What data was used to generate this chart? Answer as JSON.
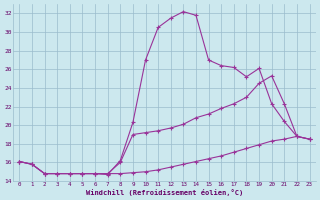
{
  "xlabel": "Windchill (Refroidissement éolien,°C)",
  "background_color": "#cce8ee",
  "line_color": "#993399",
  "xlim": [
    -0.5,
    23.5
  ],
  "ylim": [
    14,
    33
  ],
  "xticks": [
    0,
    1,
    2,
    3,
    4,
    5,
    6,
    7,
    8,
    9,
    10,
    11,
    12,
    13,
    14,
    15,
    16,
    17,
    18,
    19,
    20,
    21,
    22,
    23
  ],
  "yticks": [
    14,
    16,
    18,
    20,
    22,
    24,
    26,
    28,
    30,
    32
  ],
  "series1_y": [
    16.1,
    15.8,
    14.8,
    14.8,
    14.8,
    14.8,
    14.8,
    14.7,
    16.2,
    20.3,
    27.0,
    30.5,
    31.5,
    32.2,
    31.8,
    27.0,
    26.4,
    26.2,
    25.2,
    26.1,
    22.3,
    20.4,
    18.8,
    18.5
  ],
  "series2_y": [
    16.1,
    15.8,
    14.8,
    14.8,
    14.8,
    14.8,
    14.8,
    14.8,
    16.0,
    19.0,
    19.2,
    19.4,
    19.7,
    20.1,
    20.8,
    21.2,
    21.8,
    22.3,
    23.0,
    24.5,
    25.3,
    22.3,
    18.8,
    18.5
  ],
  "series3_y": [
    16.1,
    15.8,
    14.8,
    14.8,
    14.8,
    14.8,
    14.8,
    14.8,
    14.8,
    14.9,
    15.0,
    15.2,
    15.5,
    15.8,
    16.1,
    16.4,
    16.7,
    17.1,
    17.5,
    17.9,
    18.3,
    18.5,
    18.8,
    18.5
  ]
}
